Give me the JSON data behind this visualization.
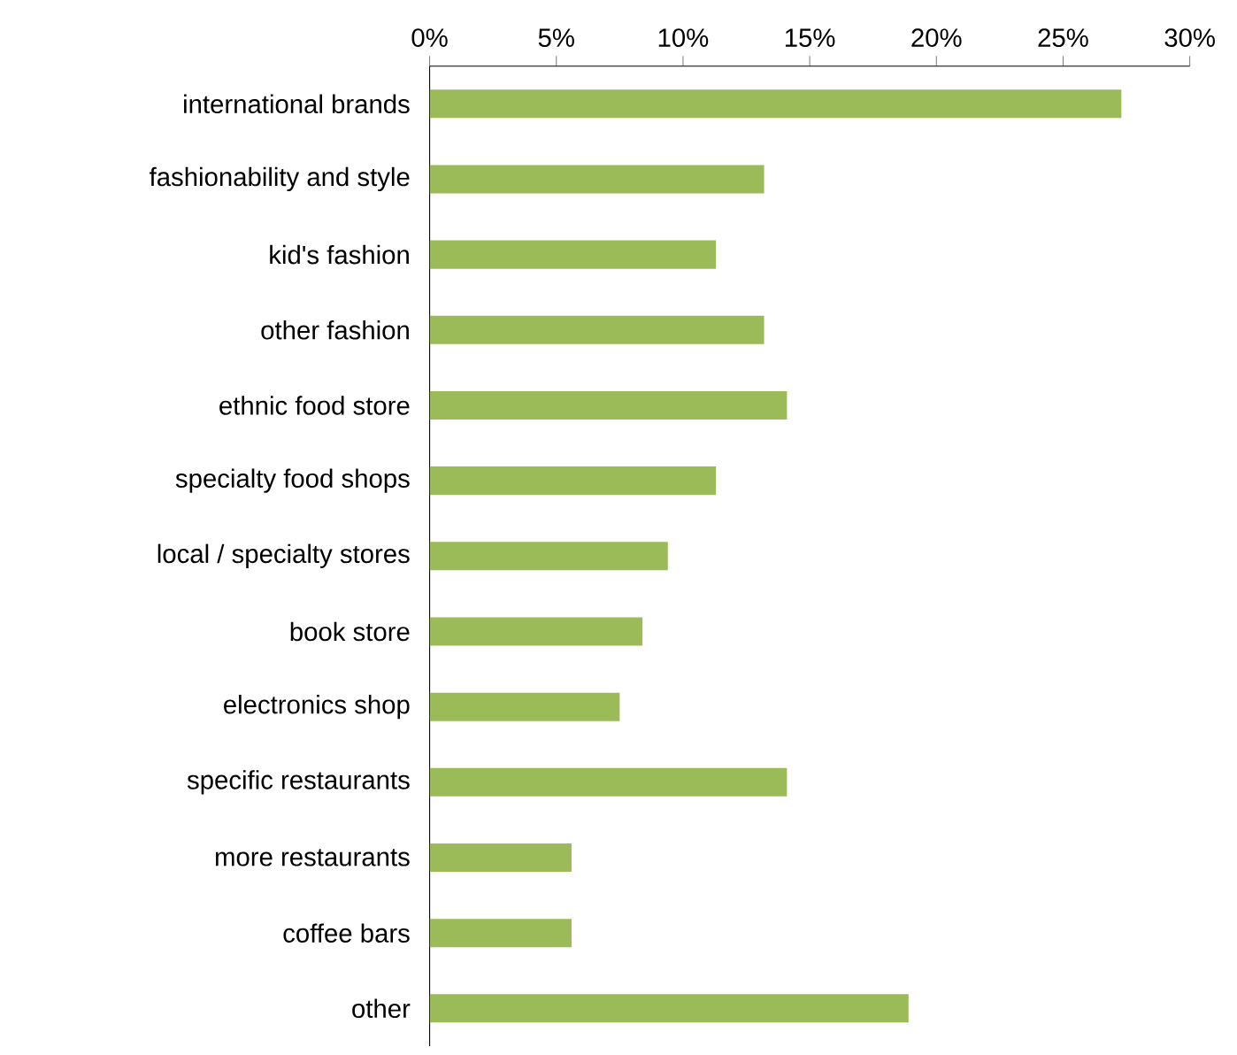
{
  "chart_data": {
    "type": "bar",
    "orientation": "horizontal",
    "categories": [
      "international brands",
      "fashionability and style",
      "kid's fashion",
      "other fashion",
      "ethnic food store",
      "specialty food shops",
      "local / specialty stores",
      "book store",
      "electronics shop",
      "specific restaurants",
      "more restaurants",
      "coffee bars",
      "other"
    ],
    "values": [
      27.3,
      13.2,
      11.3,
      13.2,
      14.1,
      11.3,
      9.4,
      8.4,
      7.5,
      14.1,
      5.6,
      5.6,
      18.9
    ],
    "color": "#9bbb59",
    "xlim": [
      0,
      30
    ],
    "xticks": [
      {
        "value": 0,
        "label": "0%"
      },
      {
        "value": 5,
        "label": "5%"
      },
      {
        "value": 10,
        "label": "10%"
      },
      {
        "value": 15,
        "label": "15%"
      },
      {
        "value": 20,
        "label": "20%"
      },
      {
        "value": 25,
        "label": "25%"
      },
      {
        "value": 30,
        "label": "30%"
      }
    ]
  }
}
